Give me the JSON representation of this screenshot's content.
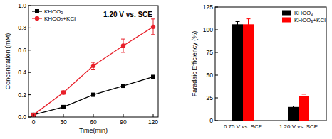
{
  "chart_data": [
    {
      "type": "line",
      "annotation": "1.20 V vs. SCE",
      "x_label": "Time(min)",
      "y_label": "Concentration (mM)",
      "x": [
        0,
        30,
        60,
        90,
        120
      ],
      "xlim": [
        -5,
        125
      ],
      "xticks": [
        0,
        30,
        60,
        90,
        120
      ],
      "ylim": [
        0,
        1.0
      ],
      "yticks": [
        {
          "value": 0,
          "label": "0.0"
        },
        0.2,
        0.4,
        0.6,
        0.8,
        {
          "value": 1.0,
          "label": "1.0"
        }
      ],
      "legend": "upper left",
      "series": [
        {
          "name": "KHCO₃",
          "color": "#000000",
          "marker": "square",
          "values": [
            0.02,
            0.09,
            0.2,
            0.28,
            0.36
          ],
          "errors": [
            0.005,
            0.008,
            0.01,
            0.01,
            0.012
          ]
        },
        {
          "name": "KHCO₃+KCl",
          "color": "#e8202a",
          "marker": "circle",
          "values": [
            0.02,
            0.22,
            0.46,
            0.64,
            0.81
          ],
          "errors": [
            0.005,
            0.015,
            0.03,
            0.06,
            0.07
          ]
        }
      ]
    },
    {
      "type": "bar",
      "y_label": "Faradaic Efficiency (%)",
      "categories": [
        "0.75 V vs. SCE",
        "1.20 V vs. SCE"
      ],
      "ylim": [
        0,
        125
      ],
      "yticks": [
        0,
        25,
        50,
        75,
        100,
        125
      ],
      "legend": "upper right",
      "series": [
        {
          "name": "KHCO₃",
          "color": "#000000",
          "values": [
            106,
            15
          ],
          "errors": [
            3,
            1
          ]
        },
        {
          "name": "KHCO₃+KCl",
          "color": "#ff0000",
          "values": [
            106,
            27
          ],
          "errors": [
            6,
            2
          ]
        }
      ]
    }
  ]
}
